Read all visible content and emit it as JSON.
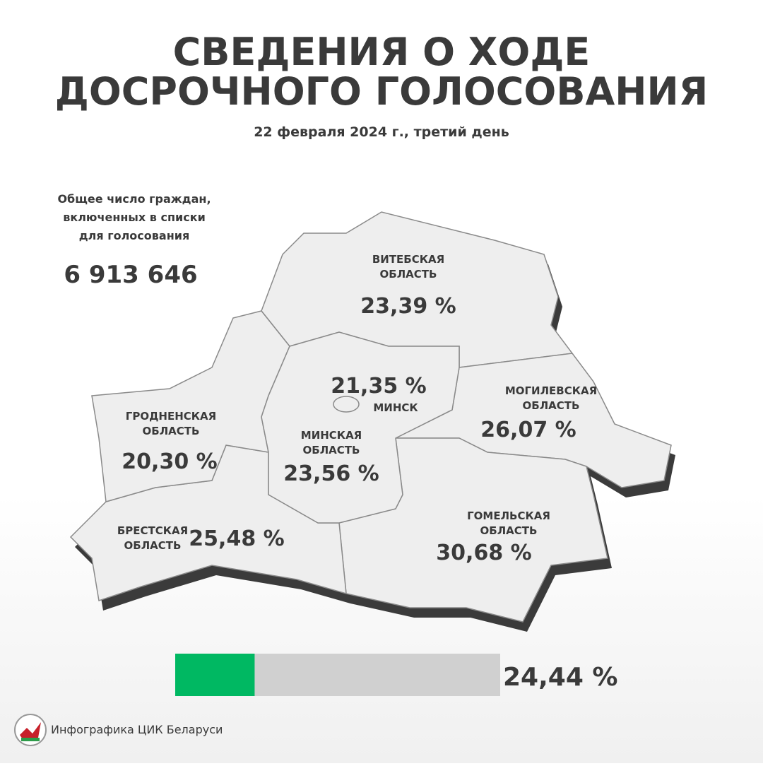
{
  "header": {
    "title_lines": [
      "СВЕДЕНИЯ О ХОДЕ",
      "ДОСРОЧНОГО ГОЛОСОВАНИЯ"
    ],
    "subtitle": "22 февраля 2024 г., третий день"
  },
  "total": {
    "label_lines": [
      "Общее число граждан,",
      "включенных в списки",
      "для голосования"
    ],
    "value": "6 913 646"
  },
  "regions": [
    {
      "name_lines": [
        "ВИТЕБСКАЯ",
        "ОБЛАСТЬ"
      ],
      "percent": "23,39 %"
    },
    {
      "name_lines": [
        "МИНСК"
      ],
      "percent": "21,35 %"
    },
    {
      "name_lines": [
        "МОГИЛЕВСКАЯ",
        "ОБЛАСТЬ"
      ],
      "percent": "26,07 %"
    },
    {
      "name_lines": [
        "ГРОДНЕНСКАЯ",
        "ОБЛАСТЬ"
      ],
      "percent": "20,30 %"
    },
    {
      "name_lines": [
        "МИНСКАЯ",
        "ОБЛАСТЬ"
      ],
      "percent": "23,56 %"
    },
    {
      "name_lines": [
        "БРЕСТСКАЯ",
        "ОБЛАСТЬ"
      ],
      "percent": "25,48 %"
    },
    {
      "name_lines": [
        "ГОМЕЛЬСКАЯ",
        "ОБЛАСТЬ"
      ],
      "percent": "30,68 %"
    }
  ],
  "progress": {
    "value": 24.44,
    "label": "24,44 %"
  },
  "footer": "Инфографика ЦИК Беларуси"
}
